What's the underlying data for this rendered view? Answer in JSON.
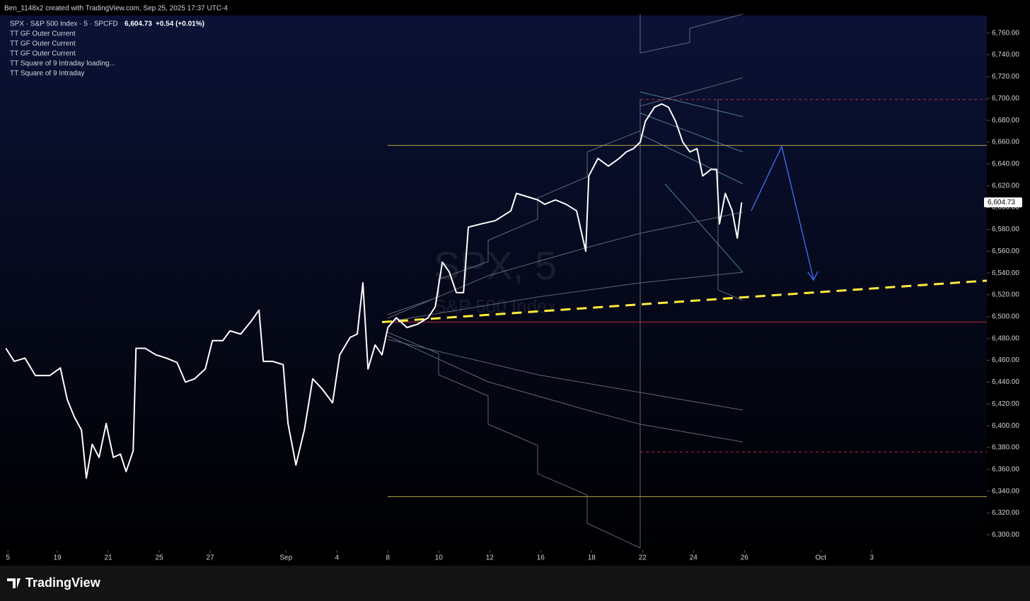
{
  "header": {
    "credit": "Ben_1148x2 created with TradingView.com, Sep 25, 2025 17:37 UTC-4"
  },
  "legend": {
    "symbol": "SPX · S&P 500 Index · 5 · SPCFD",
    "price": "6,604.73",
    "change": "+0.54 (+0.01%)",
    "indicators": [
      "TT GF Outer Current",
      "TT GF Outer Current",
      "TT GF Outer Current",
      "TT Square of 9 Intraday loading...",
      "TT Square of 9 Intraday"
    ]
  },
  "watermark": {
    "title": "SPX, 5",
    "subtitle": "S&P 500 Index"
  },
  "footer": {
    "brand": "TradingView"
  },
  "chart_data": {
    "type": "line",
    "series": [
      {
        "name": "SPX",
        "color": "#ffffff",
        "x": [
          -0.08,
          0.25,
          0.67,
          1.08,
          1.64,
          2.06,
          2.33,
          2.61,
          2.89,
          3.08,
          3.31,
          3.58,
          3.86,
          4.14,
          4.42,
          4.64,
          4.92,
          5.03,
          5.39,
          5.81,
          6.22,
          6.64,
          6.97,
          7.33,
          7.75,
          8.03,
          8.44,
          8.72,
          9.14,
          9.56,
          9.86,
          10.03,
          10.39,
          10.81,
          11,
          11.31,
          11.64,
          11.97,
          12.33,
          12.75,
          13.03,
          13.44,
          13.72,
          13.94,
          14.14,
          14.42,
          14.69,
          14.92,
          15.25,
          15.67,
          16.08,
          16.5,
          16.78,
          17.06,
          17.33,
          17.61,
          17.89,
          18.08,
          18.58,
          19.14,
          19.75,
          19.97,
          20.39,
          20.81,
          21.08,
          21.5,
          21.92,
          22.33,
          22.69,
          22.81,
          23.17,
          23.58,
          24,
          24.28,
          24.56,
          24.83,
          25.03,
          25.39,
          25.67,
          25.94,
          26.22,
          26.5,
          26.78,
          27.06,
          27.28,
          27.61,
          27.83,
          27.94,
          28.17,
          28.44,
          28.64,
          28.81
        ],
        "values": [
          6471,
          6459,
          6462,
          6446,
          6446,
          6453,
          6424,
          6408,
          6396,
          6352,
          6383,
          6371,
          6402,
          6371,
          6374,
          6358,
          6377,
          6471,
          6471,
          6465,
          6462,
          6458,
          6440,
          6443,
          6452,
          6478,
          6478,
          6487,
          6484,
          6496,
          6506,
          6459,
          6459,
          6456,
          6402,
          6364,
          6396,
          6443,
          6434,
          6421,
          6465,
          6481,
          6484,
          6531,
          6452,
          6474,
          6465,
          6490,
          6499,
          6490,
          6493,
          6499,
          6509,
          6550,
          6541,
          6522,
          6522,
          6582,
          6585,
          6588,
          6597,
          6613,
          6610,
          6607,
          6603,
          6607,
          6603,
          6597,
          6560,
          6629,
          6645,
          6638,
          6645,
          6651,
          6654,
          6660,
          6679,
          6692,
          6695,
          6692,
          6679,
          6660,
          6651,
          6654,
          6629,
          6635,
          6635,
          6585,
          6613,
          6597,
          6572,
          6604.73
        ],
        "last_label": "6,604.73"
      }
    ],
    "levels": [
      {
        "value": 6657,
        "color": "#b5a642",
        "style": "solid"
      },
      {
        "value": 6335,
        "color": "#b5a642",
        "style": "solid"
      },
      {
        "value": 6495,
        "color": "#c0283a",
        "style": "solid"
      },
      {
        "value": 6699,
        "color": "#c0283a",
        "style": "dashed"
      },
      {
        "value": 6376,
        "color": "#c0283a",
        "style": "dashed"
      }
    ],
    "trendline": {
      "x": [
        14.69,
        38.44
      ],
      "values": [
        6495,
        6533
      ],
      "color": "#ffeb3b"
    },
    "xlim": [
      -0.31,
      38.44
    ],
    "ylim": [
      6286,
      6776
    ],
    "xticks": [
      {
        "value": 0,
        "label": "5"
      },
      {
        "value": 1.94,
        "label": "19"
      },
      {
        "value": 3.94,
        "label": "21"
      },
      {
        "value": 5.94,
        "label": "25"
      },
      {
        "value": 7.94,
        "label": "27"
      },
      {
        "value": 10.92,
        "label": "Sep"
      },
      {
        "value": 12.92,
        "label": "4"
      },
      {
        "value": 14.92,
        "label": "8"
      },
      {
        "value": 16.92,
        "label": "10"
      },
      {
        "value": 18.92,
        "label": "12"
      },
      {
        "value": 20.92,
        "label": "16"
      },
      {
        "value": 22.92,
        "label": "18"
      },
      {
        "value": 24.92,
        "label": "22"
      },
      {
        "value": 26.92,
        "label": "24"
      },
      {
        "value": 28.92,
        "label": "26"
      },
      {
        "value": 31.92,
        "label": "Oct"
      },
      {
        "value": 33.92,
        "label": "3"
      }
    ],
    "yticks": [
      {
        "value": 6300,
        "label": "6,300.00"
      },
      {
        "value": 6320,
        "label": "6,320.00"
      },
      {
        "value": 6340,
        "label": "6,340.00"
      },
      {
        "value": 6360,
        "label": "6,360.00"
      },
      {
        "value": 6380,
        "label": "6,380.00"
      },
      {
        "value": 6400,
        "label": "6,400.00"
      },
      {
        "value": 6420,
        "label": "6,420.00"
      },
      {
        "value": 6440,
        "label": "6,440.00"
      },
      {
        "value": 6460,
        "label": "6,460.00"
      },
      {
        "value": 6480,
        "label": "6,480.00"
      },
      {
        "value": 6500,
        "label": "6,500.00"
      },
      {
        "value": 6520,
        "label": "6,520.00"
      },
      {
        "value": 6540,
        "label": "6,540.00"
      },
      {
        "value": 6560,
        "label": "6,560.00"
      },
      {
        "value": 6580,
        "label": "6,580.00"
      },
      {
        "value": 6600,
        "label": "6,600.00"
      },
      {
        "value": 6620,
        "label": "6,620.00"
      },
      {
        "value": 6640,
        "label": "6,640.00"
      },
      {
        "value": 6660,
        "label": "6,660.00"
      },
      {
        "value": 6680,
        "label": "6,680.00"
      },
      {
        "value": 6700,
        "label": "6,700.00"
      },
      {
        "value": 6720,
        "label": "6,720.00"
      },
      {
        "value": 6740,
        "label": "6,740.00"
      },
      {
        "value": 6760,
        "label": "6,760.00"
      }
    ]
  }
}
